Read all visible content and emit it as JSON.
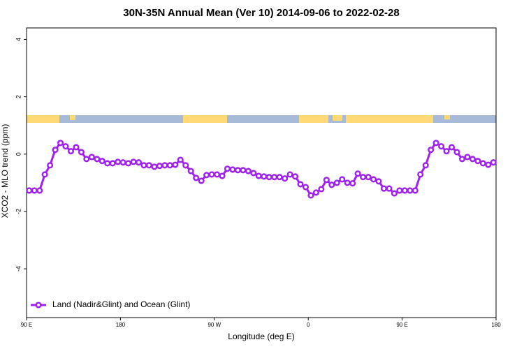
{
  "chart_data": {
    "type": "line",
    "title": "30N-35N Annual Mean (Ver 10)   2014-09-06 to 2022-02-28",
    "x_label": "Longitude (deg E)",
    "y_label": "XCO2 - MLO trend (ppm)",
    "xlim": [
      90,
      540
    ],
    "ylim": [
      -5.7,
      4.4
    ],
    "xticks": [
      {
        "value": 90,
        "label": "90 E"
      },
      180,
      {
        "value": 270,
        "label": "90 W"
      },
      {
        "value": 360,
        "label": "0"
      },
      {
        "value": 450,
        "label": "90 E"
      },
      {
        "value": 540,
        "label": "180"
      }
    ],
    "yticks": [
      -4,
      -2,
      0,
      2,
      4
    ],
    "legend_position": "bottom-left",
    "x": [
      92.5,
      97.5,
      102.5,
      107.5,
      112.5,
      117.5,
      122.5,
      127.5,
      132.5,
      137.5,
      142.5,
      147.5,
      152.5,
      157.5,
      162.5,
      167.5,
      172.5,
      177.5,
      182.5,
      187.5,
      192.5,
      197.5,
      202.5,
      207.5,
      212.5,
      217.5,
      222.5,
      227.5,
      232.5,
      237.5,
      242.5,
      247.5,
      252.5,
      257.5,
      262.5,
      267.5,
      272.5,
      277.5,
      282.5,
      287.5,
      292.5,
      297.5,
      302.5,
      307.5,
      312.5,
      317.5,
      322.5,
      327.5,
      332.5,
      337.5,
      342.5,
      347.5,
      352.5,
      357.5,
      362.5,
      367.5,
      372.5,
      377.5,
      382.5,
      387.5,
      392.5,
      397.5,
      402.5,
      407.5,
      412.5,
      417.5,
      422.5,
      427.5,
      432.5,
      437.5,
      442.5,
      447.5,
      452.5,
      457.5,
      462.5,
      467.5,
      472.5,
      477.5,
      482.5,
      487.5,
      492.5,
      497.5,
      502.5,
      507.5,
      512.5,
      517.5,
      522.5,
      527.5,
      532.5,
      537.5
    ],
    "series": [
      {
        "name": "Land (Nadir&Glint) and Ocean (Glint)",
        "color": "#a020f0",
        "values": [
          -1.27,
          -1.27,
          -1.27,
          -0.71,
          -0.39,
          0.15,
          0.39,
          0.27,
          0.1,
          0.24,
          0.07,
          -0.17,
          -0.1,
          -0.17,
          -0.24,
          -0.32,
          -0.32,
          -0.27,
          -0.29,
          -0.32,
          -0.27,
          -0.29,
          -0.39,
          -0.39,
          -0.44,
          -0.41,
          -0.39,
          -0.39,
          -0.37,
          -0.2,
          -0.39,
          -0.59,
          -0.83,
          -0.93,
          -0.73,
          -0.71,
          -0.71,
          -0.76,
          -0.51,
          -0.54,
          -0.56,
          -0.56,
          -0.59,
          -0.66,
          -0.76,
          -0.78,
          -0.8,
          -0.8,
          -0.8,
          -0.85,
          -0.71,
          -0.78,
          -1.05,
          -1.15,
          -1.44,
          -1.34,
          -1.22,
          -0.9,
          -1.07,
          -1.0,
          -0.88,
          -1.0,
          -1.02,
          -0.68,
          -0.8,
          -0.8,
          -0.88,
          -0.95,
          -1.2,
          -1.2,
          -1.37,
          -1.27,
          -1.27,
          -1.27,
          -1.27,
          -0.71,
          -0.39,
          0.15,
          0.39,
          0.27,
          0.1,
          0.24,
          0.07,
          -0.17,
          -0.1,
          -0.17,
          -0.24,
          -0.32,
          -0.37,
          -0.29
        ]
      }
    ]
  }
}
